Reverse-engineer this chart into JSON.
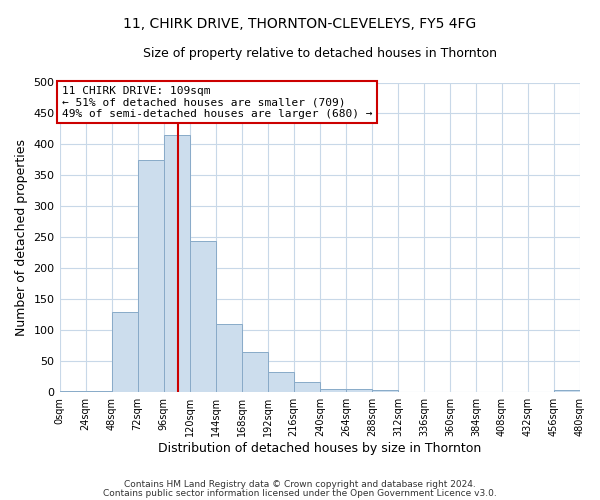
{
  "title1": "11, CHIRK DRIVE, THORNTON-CLEVELEYS, FY5 4FG",
  "title2": "Size of property relative to detached houses in Thornton",
  "xlabel": "Distribution of detached houses by size in Thornton",
  "ylabel": "Number of detached properties",
  "footer1": "Contains HM Land Registry data © Crown copyright and database right 2024.",
  "footer2": "Contains public sector information licensed under the Open Government Licence v3.0.",
  "bin_edges": [
    0,
    24,
    48,
    72,
    96,
    120,
    144,
    168,
    192,
    216,
    240,
    264,
    288,
    312,
    336,
    360,
    384,
    408,
    432,
    456,
    480
  ],
  "bin_values": [
    2,
    2,
    130,
    375,
    415,
    245,
    110,
    65,
    33,
    16,
    5,
    5,
    3,
    0,
    0,
    0,
    0,
    0,
    0,
    3
  ],
  "bar_color": "#ccdded",
  "bar_edge_color": "#88aac8",
  "vline_color": "#cc0000",
  "vline_x": 109,
  "annotation_line1": "11 CHIRK DRIVE: 109sqm",
  "annotation_line2": "← 51% of detached houses are smaller (709)",
  "annotation_line3": "49% of semi-detached houses are larger (680) →",
  "annotation_box_color": "#ffffff",
  "annotation_box_edge": "#cc0000",
  "ylim": [
    0,
    500
  ],
  "yticks": [
    0,
    50,
    100,
    150,
    200,
    250,
    300,
    350,
    400,
    450,
    500
  ],
  "xtick_labels": [
    "0sqm",
    "24sqm",
    "48sqm",
    "72sqm",
    "96sqm",
    "120sqm",
    "144sqm",
    "168sqm",
    "192sqm",
    "216sqm",
    "240sqm",
    "264sqm",
    "288sqm",
    "312sqm",
    "336sqm",
    "360sqm",
    "384sqm",
    "408sqm",
    "432sqm",
    "456sqm",
    "480sqm"
  ],
  "bg_color": "#ffffff",
  "grid_color": "#c8d8e8",
  "title1_fontsize": 10,
  "title2_fontsize": 9,
  "annotation_fontsize": 8,
  "footer_fontsize": 6.5
}
